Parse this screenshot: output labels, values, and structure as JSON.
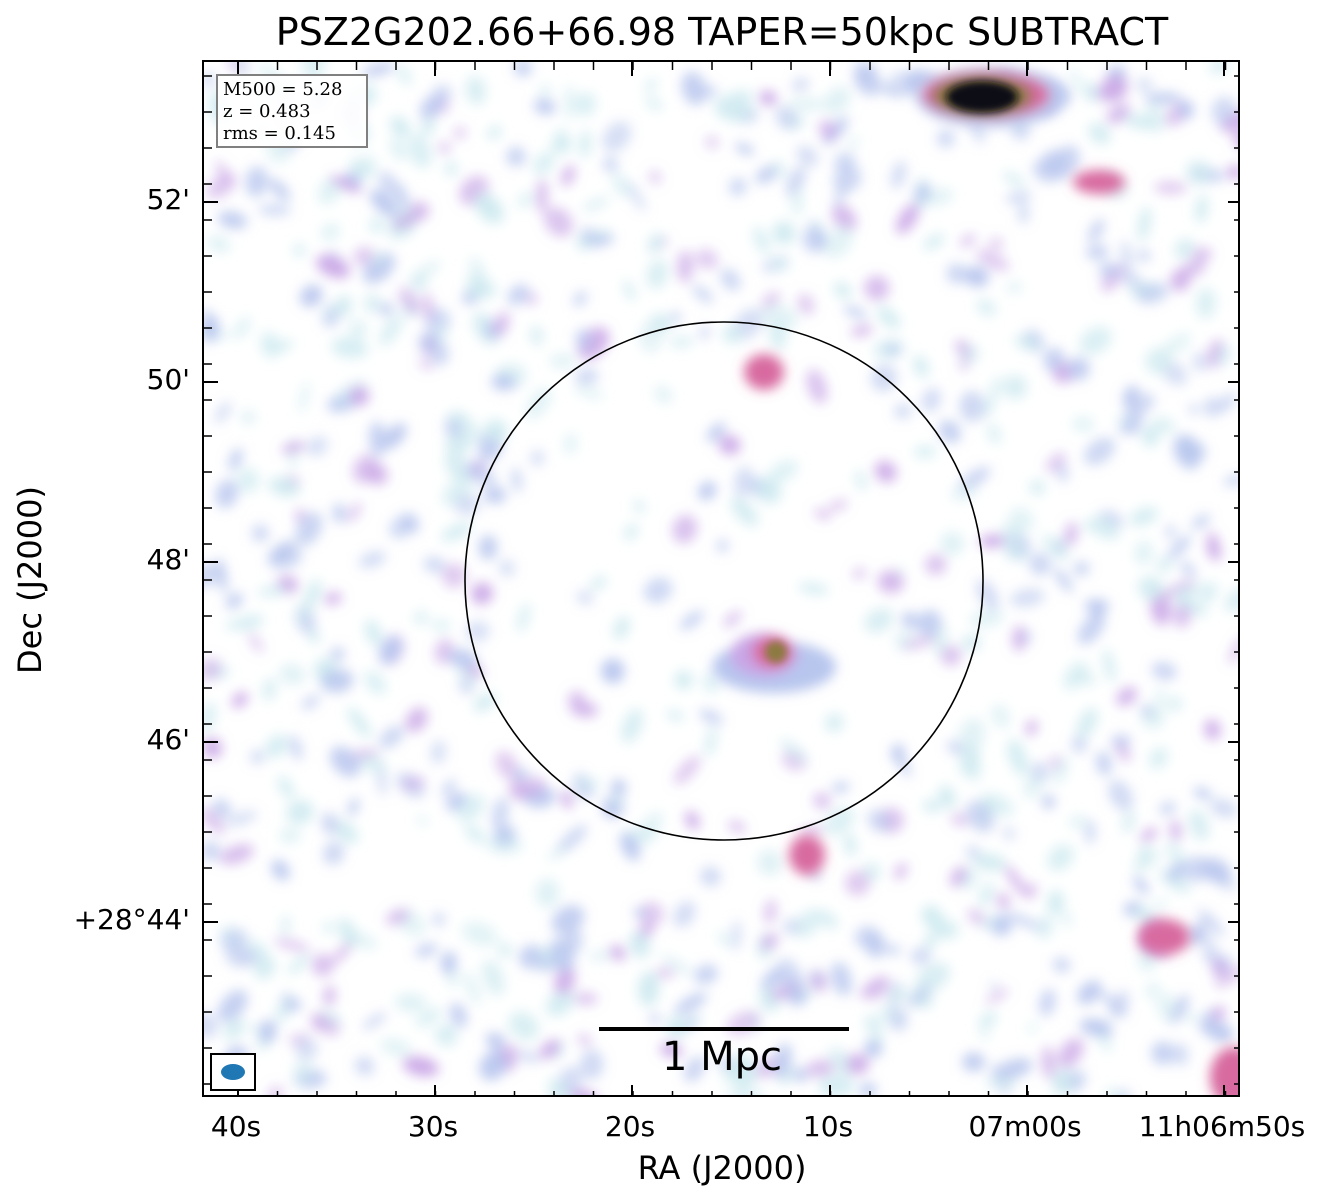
{
  "title": "PSZ2G202.66+66.98 TAPER=50kpc SUBTRACT",
  "info": {
    "mass": "M500 = 5.28",
    "redshift": "z = 0.483",
    "rms": "rms = 0.145"
  },
  "axes": {
    "xlabel": "RA (J2000)",
    "ylabel": "Dec (J2000)",
    "xticks": [
      "40s",
      "30s",
      "20s",
      "10s",
      "07m00s",
      "11h06m50s"
    ],
    "yticks": [
      "52'",
      "50'",
      "48'",
      "46'",
      "+28°44'"
    ]
  },
  "scalebar": {
    "label": "1 Mpc"
  },
  "beam": {
    "color": "#1f77b4"
  },
  "circle": {
    "color": "#000000"
  },
  "colors": {
    "noise_light": "#cfeaf0",
    "noise_mid": "#b8c6ee",
    "noise_strong": "#c9a6e6",
    "peak": "#d86aa0",
    "brown": "#8b7a40",
    "dark": "#0b0b12"
  }
}
